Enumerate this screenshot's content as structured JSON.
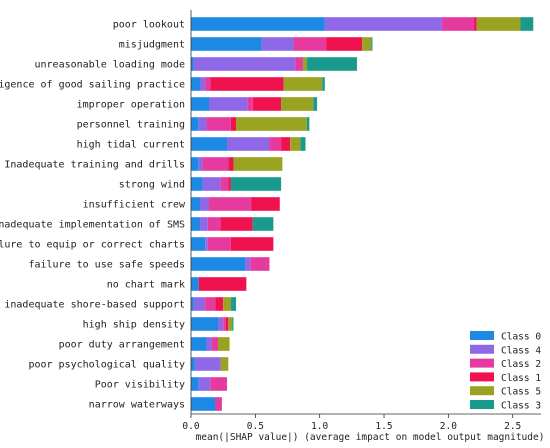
{
  "chart_data": {
    "type": "bar",
    "orientation": "horizontal",
    "stacked": true,
    "xlabel": "mean(|SHAP value|) (average impact on model output magnitude)",
    "ylabel": "",
    "xlim": [
      0,
      2.72
    ],
    "xticks": [
      "0.0",
      "0.5",
      "1.0",
      "1.5",
      "2.0",
      "2.5"
    ],
    "grid": false,
    "legend_position": "bottom-right",
    "categories": [
      "poor lookout",
      "misjudgment",
      "unreasonable loading mode",
      "negligence of good sailing practice",
      "improper operation",
      "personnel training",
      "high tidal current",
      "Inadequate training and drills",
      "strong wind",
      "insufficient crew",
      "Inadequate implementation of SMS",
      "failure to equip or correct charts",
      "failure to use safe speeds",
      "no chart mark",
      "inadequate shore-based support",
      "high ship density",
      "poor duty arrangement",
      "poor psychological quality",
      "Poor visibility",
      "narrow waterways"
    ],
    "series": [
      {
        "name": "Class 0",
        "color": "#1e88e5",
        "values": [
          1.04,
          0.55,
          0.02,
          0.07,
          0.14,
          0.06,
          0.28,
          0.06,
          0.09,
          0.07,
          0.07,
          0.11,
          0.42,
          0.06,
          0.02,
          0.21,
          0.12,
          0.03,
          0.06,
          0.19
        ]
      },
      {
        "name": "Class 4",
        "color": "#8f68e8",
        "values": [
          0.91,
          0.25,
          0.79,
          0.04,
          0.3,
          0.06,
          0.33,
          0.03,
          0.14,
          0.07,
          0.06,
          0.02,
          0.04,
          0.0,
          0.09,
          0.04,
          0.04,
          0.2,
          0.09,
          0.0
        ]
      },
      {
        "name": "Class 2",
        "color": "#e53a9e",
        "values": [
          0.25,
          0.25,
          0.06,
          0.04,
          0.04,
          0.19,
          0.09,
          0.2,
          0.06,
          0.33,
          0.1,
          0.18,
          0.15,
          0.0,
          0.08,
          0.02,
          0.05,
          0.0,
          0.13,
          0.05
        ]
      },
      {
        "name": "Class 1",
        "color": "#f0124f",
        "values": [
          0.02,
          0.28,
          0.0,
          0.57,
          0.22,
          0.04,
          0.07,
          0.04,
          0.02,
          0.22,
          0.25,
          0.33,
          0.0,
          0.37,
          0.06,
          0.02,
          0.0,
          0.0,
          0.0,
          0.0
        ]
      },
      {
        "name": "Class 5",
        "color": "#9aa321",
        "values": [
          0.34,
          0.07,
          0.03,
          0.3,
          0.25,
          0.55,
          0.08,
          0.38,
          0.0,
          0.0,
          0.0,
          0.0,
          0.0,
          0.0,
          0.06,
          0.03,
          0.09,
          0.06,
          0.0,
          0.0
        ]
      },
      {
        "name": "Class 3",
        "color": "#1a9a8c",
        "values": [
          0.1,
          0.01,
          0.39,
          0.02,
          0.03,
          0.02,
          0.04,
          0.0,
          0.39,
          0.0,
          0.16,
          0.0,
          0.0,
          0.0,
          0.04,
          0.01,
          0.0,
          0.0,
          0.0,
          0.0
        ]
      }
    ],
    "legend_order": [
      "Class 0",
      "Class 4",
      "Class 2",
      "Class 1",
      "Class 5",
      "Class 3"
    ]
  }
}
